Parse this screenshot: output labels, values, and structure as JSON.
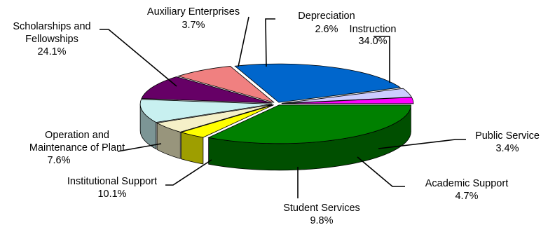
{
  "chart_data": {
    "type": "pie",
    "style": "3d-exploded-ellipse",
    "title": "",
    "start_angle_deg": 0,
    "direction": "clockwise",
    "slices": [
      {
        "label": [
          "Instruction"
        ],
        "pct_text": "34.0%",
        "value": 34.0,
        "color": "#008000"
      },
      {
        "label": [
          "Public Service"
        ],
        "pct_text": "3.4%",
        "value": 3.4,
        "color": "#FFFF00"
      },
      {
        "label": [
          "Academic Support"
        ],
        "pct_text": "4.7%",
        "value": 4.7,
        "color": "#F5F0C8"
      },
      {
        "label": [
          "Student Services"
        ],
        "pct_text": "9.8%",
        "value": 9.8,
        "color": "#C8F0F0"
      },
      {
        "label": [
          "Institutional Support"
        ],
        "pct_text": "10.1%",
        "value": 10.1,
        "color": "#660066"
      },
      {
        "label": [
          "Operation and",
          "Maintenance of Plant"
        ],
        "pct_text": "7.6%",
        "value": 7.6,
        "color": "#F08080"
      },
      {
        "label": [
          "Scholarships and",
          "Fellowships"
        ],
        "pct_text": "24.1%",
        "value": 24.1,
        "color": "#0066CC"
      },
      {
        "label": [
          "Auxiliary Enterprises"
        ],
        "pct_text": "3.7%",
        "value": 3.7,
        "color": "#CCCCFF"
      },
      {
        "label": [
          "Depreciation"
        ],
        "pct_text": "2.6%",
        "value": 2.6,
        "color": "#FF00FF"
      }
    ]
  }
}
